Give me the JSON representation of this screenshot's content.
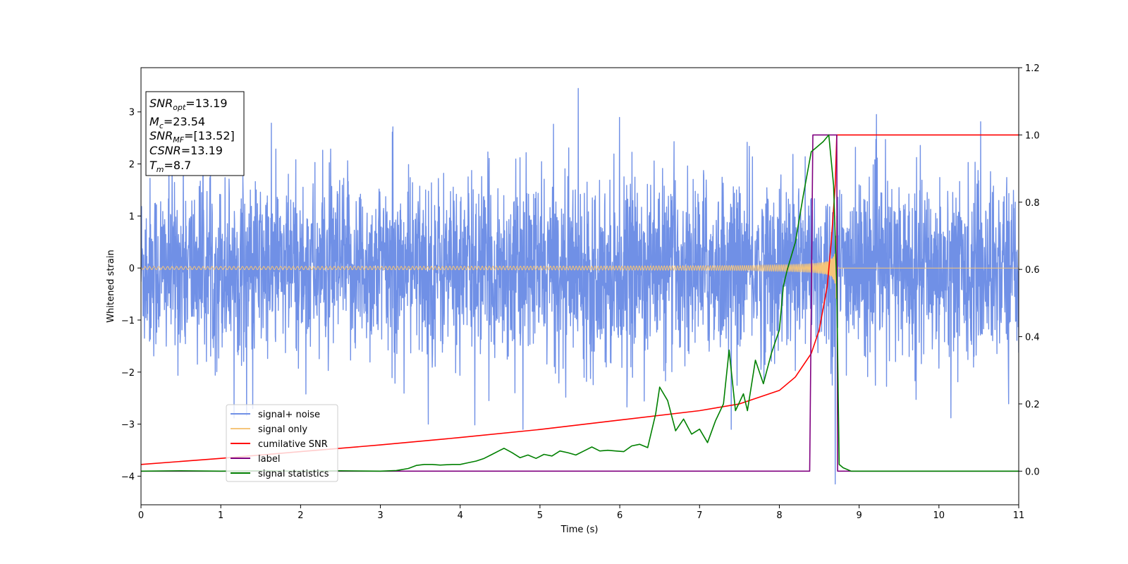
{
  "chart_data": {
    "type": "line",
    "xlabel": "Time (s)",
    "ylabel_left": "Whitened strain",
    "xlim": [
      0,
      11
    ],
    "ylim_left": [
      -4.55,
      3.85
    ],
    "ylim_right": [
      -0.1,
      1.2
    ],
    "x_ticks": [
      0,
      1,
      2,
      3,
      4,
      5,
      6,
      7,
      8,
      9,
      10,
      11
    ],
    "y_left_ticks": [
      -4,
      -3,
      -2,
      -1,
      0,
      1,
      2,
      3
    ],
    "y_right_ticks": [
      0.0,
      0.2,
      0.4,
      0.6,
      0.8,
      1.0,
      1.2
    ],
    "legend_position": "lower-left",
    "grid": false,
    "info_box": {
      "snr_opt": {
        "base": "SNR",
        "sub": "opt",
        "value": "=13.19"
      },
      "mc": {
        "base": "M",
        "sub": "c",
        "value": "=23.54"
      },
      "snr_mf": {
        "base": "SNR",
        "sub": "MF",
        "value": "=[13.52]"
      },
      "csnr": {
        "base": "CSNR",
        "sub": "",
        "value": "=13.19"
      },
      "tm": {
        "base": "T",
        "sub": "m",
        "value": "=8.7"
      }
    },
    "series": [
      {
        "name": "signal+ noise",
        "axis": "left",
        "color": "#7090e6",
        "kind": "noise",
        "noise_std": 0.85,
        "time_range": [
          0,
          11
        ],
        "extreme_spikes": [
          [
            5.48,
            3.45
          ],
          [
            8.7,
            -4.15
          ],
          [
            3.6,
            -3.0
          ],
          [
            1.4,
            -2.7
          ],
          [
            10.15,
            -2.88
          ]
        ]
      },
      {
        "name": "signal only",
        "axis": "left",
        "color": "#f5c57a",
        "kind": "chirp",
        "merger_time": 8.72,
        "peak_amplitude": 1.0
      },
      {
        "name": "cumilative SNR",
        "axis": "right",
        "color": "#ff0000",
        "x": [
          0,
          1,
          2,
          3,
          4,
          5,
          6,
          7,
          7.5,
          8,
          8.2,
          8.4,
          8.5,
          8.6,
          8.65,
          8.7,
          8.72,
          11
        ],
        "y": [
          0.02,
          0.038,
          0.058,
          0.078,
          0.1,
          0.124,
          0.152,
          0.18,
          0.2,
          0.24,
          0.28,
          0.35,
          0.42,
          0.55,
          0.68,
          0.85,
          1.0,
          1.0
        ]
      },
      {
        "name": "label",
        "axis": "right",
        "color": "#800080",
        "x": [
          0,
          8.38,
          8.42,
          8.7,
          8.72,
          8.73,
          8.76,
          11
        ],
        "y": [
          0.0,
          0.0,
          1.0,
          1.0,
          1.0,
          0.0,
          0.0,
          0.0
        ]
      },
      {
        "name": "signal statistics",
        "axis": "right",
        "color": "#008000",
        "x": [
          0,
          0.5,
          1.0,
          1.5,
          2.0,
          2.5,
          3.0,
          3.2,
          3.35,
          3.45,
          3.55,
          3.65,
          3.75,
          3.9,
          4.0,
          4.1,
          4.2,
          4.3,
          4.4,
          4.5,
          4.55,
          4.65,
          4.75,
          4.85,
          4.95,
          5.05,
          5.15,
          5.25,
          5.35,
          5.45,
          5.55,
          5.65,
          5.75,
          5.85,
          5.95,
          6.05,
          6.15,
          6.25,
          6.35,
          6.45,
          6.5,
          6.6,
          6.7,
          6.8,
          6.9,
          7.0,
          7.1,
          7.2,
          7.3,
          7.37,
          7.45,
          7.55,
          7.6,
          7.7,
          7.8,
          7.9,
          8.0,
          8.05,
          8.1,
          8.2,
          8.3,
          8.4,
          8.45,
          8.55,
          8.62,
          8.68,
          8.72,
          8.75,
          8.8,
          8.9,
          9.0,
          11.0
        ],
        "y": [
          0.0,
          0.001,
          0.0,
          0.001,
          0.0,
          0.001,
          0.0,
          0.002,
          0.008,
          0.017,
          0.02,
          0.02,
          0.018,
          0.02,
          0.02,
          0.025,
          0.03,
          0.038,
          0.05,
          0.062,
          0.068,
          0.055,
          0.04,
          0.048,
          0.038,
          0.05,
          0.045,
          0.06,
          0.055,
          0.048,
          0.06,
          0.072,
          0.06,
          0.062,
          0.06,
          0.058,
          0.075,
          0.08,
          0.07,
          0.17,
          0.25,
          0.21,
          0.12,
          0.155,
          0.11,
          0.125,
          0.085,
          0.15,
          0.2,
          0.36,
          0.18,
          0.23,
          0.18,
          0.33,
          0.26,
          0.35,
          0.42,
          0.55,
          0.6,
          0.68,
          0.82,
          0.95,
          0.96,
          0.98,
          1.0,
          0.85,
          0.55,
          0.02,
          0.01,
          0.0,
          0.0,
          0.0
        ]
      }
    ]
  }
}
